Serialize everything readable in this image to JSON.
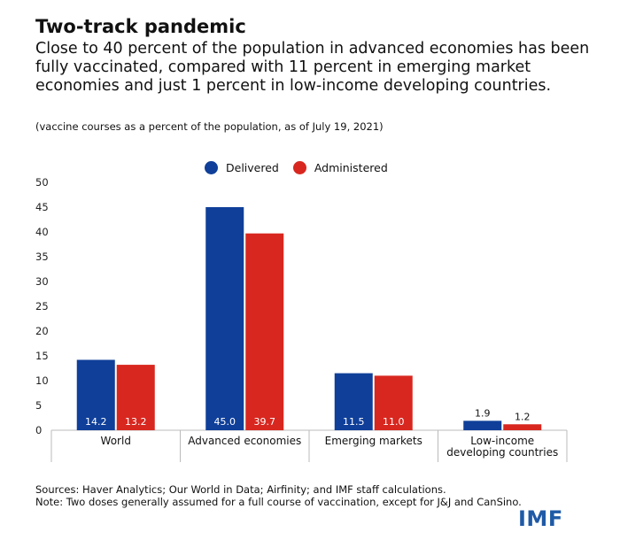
{
  "header": {
    "title": "Two-track pandemic",
    "subtitle": "Close to 40 percent of the population in advanced economies has been fully vaccinated, compared with 11 percent in emerging market economies and just 1 percent in low-income developing countries.",
    "note": "(vaccine courses as a percent of the population, as of July 19, 2021)"
  },
  "colors": {
    "delivered": "#0f3f99",
    "administered": "#d8271f",
    "axis": "#bbbbbb",
    "logo": "#1f5aa6"
  },
  "chart_data": {
    "type": "bar",
    "categories": [
      "World",
      "Advanced economies",
      "Emerging markets",
      "Low-income developing countries"
    ],
    "category_lines": [
      [
        "World"
      ],
      [
        "Advanced economies"
      ],
      [
        "Emerging markets"
      ],
      [
        "Low-income",
        "developing countries"
      ]
    ],
    "series": [
      {
        "name": "Delivered",
        "values": [
          14.2,
          45.0,
          11.5,
          1.9
        ],
        "labels": [
          "14.2",
          "45.0",
          "11.5",
          "1.9"
        ]
      },
      {
        "name": "Administered",
        "values": [
          13.2,
          39.7,
          11.0,
          1.2
        ],
        "labels": [
          "13.2",
          "39.7",
          "11.0",
          "1.2"
        ]
      }
    ],
    "ylim": [
      0,
      50
    ],
    "yticks": [
      0,
      5,
      10,
      15,
      20,
      25,
      30,
      35,
      40,
      45,
      50
    ],
    "legend_position": "top",
    "grid": false
  },
  "footer": {
    "sources": "Sources: Haver Analytics; Our World in Data; Airfinity; and IMF staff calculations.",
    "note": "Note: Two doses generally assumed for a full course of vaccination, except for J&J and CanSino.",
    "logo": "IMF"
  }
}
